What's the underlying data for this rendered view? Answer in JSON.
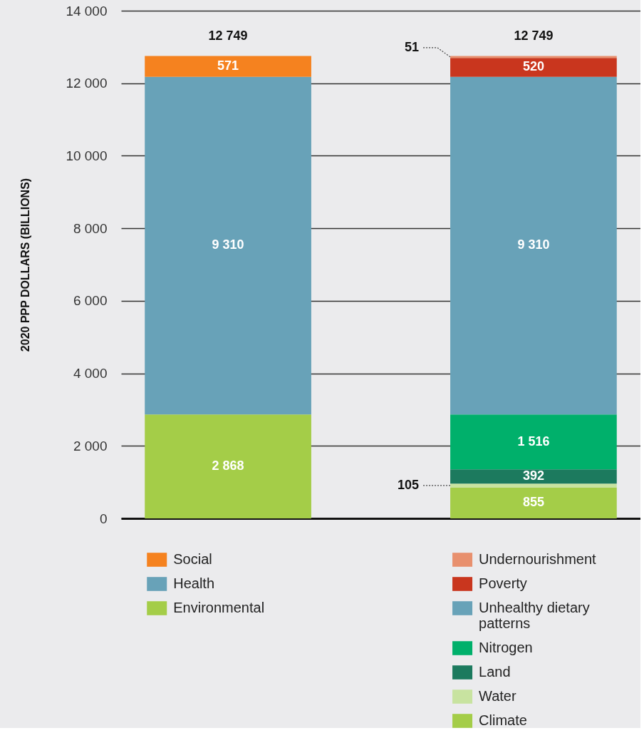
{
  "chart_data": {
    "type": "bar",
    "ylabel": "2020 PPP DOLLARS (BILLIONS)",
    "categories": [
      null,
      null
    ],
    "stacked": true,
    "series": [
      {
        "name": "Environmental",
        "color": "#a4cd48",
        "values": [
          2868,
          null
        ],
        "value_labels": [
          "2 868",
          null
        ]
      },
      {
        "name": "Health",
        "color": "#68a2b8",
        "values": [
          9310,
          null
        ],
        "value_labels": [
          "9 310",
          null
        ]
      },
      {
        "name": "Social",
        "color": "#f5821f",
        "values": [
          571,
          null
        ],
        "value_labels": [
          "571",
          null
        ]
      },
      {
        "name": "Climate",
        "color": "#a4cd48",
        "values": [
          null,
          855
        ],
        "value_labels": [
          null,
          "855"
        ]
      },
      {
        "name": "Water",
        "color": "#c8e3a0",
        "values": [
          null,
          105
        ],
        "value_labels": [
          null,
          "105"
        ]
      },
      {
        "name": "Land",
        "color": "#1c7a5e",
        "values": [
          null,
          392
        ],
        "value_labels": [
          null,
          "392"
        ]
      },
      {
        "name": "Nitrogen",
        "color": "#00b06b",
        "values": [
          null,
          1516
        ],
        "value_labels": [
          null,
          "1 516"
        ]
      },
      {
        "name": "Unhealthy dietary patterns",
        "color": "#68a2b8",
        "values": [
          null,
          9310
        ],
        "value_labels": [
          null,
          "9 310"
        ]
      },
      {
        "name": "Poverty",
        "color": "#c9361e",
        "values": [
          null,
          520
        ],
        "value_labels": [
          null,
          "520"
        ]
      },
      {
        "name": "Undernourishment",
        "color": "#e8906e",
        "values": [
          null,
          51
        ],
        "value_labels": [
          null,
          "51"
        ]
      }
    ],
    "ylim": [
      0,
      14000
    ],
    "yticks": [
      0,
      {
        "value": 2000,
        "label": "2 000"
      },
      {
        "value": 4000,
        "label": "4 000"
      },
      {
        "value": 6000,
        "label": "6 000"
      },
      {
        "value": 8000,
        "label": "8 000"
      },
      {
        "value": 10000,
        "label": "10 000"
      },
      {
        "value": 12000,
        "label": "12 000"
      },
      {
        "value": 14000,
        "label": "14 000"
      }
    ],
    "grid": "y",
    "legend": "bottom",
    "tick_labels": "y",
    "totals": [
      "12 749",
      "12 749"
    ]
  }
}
